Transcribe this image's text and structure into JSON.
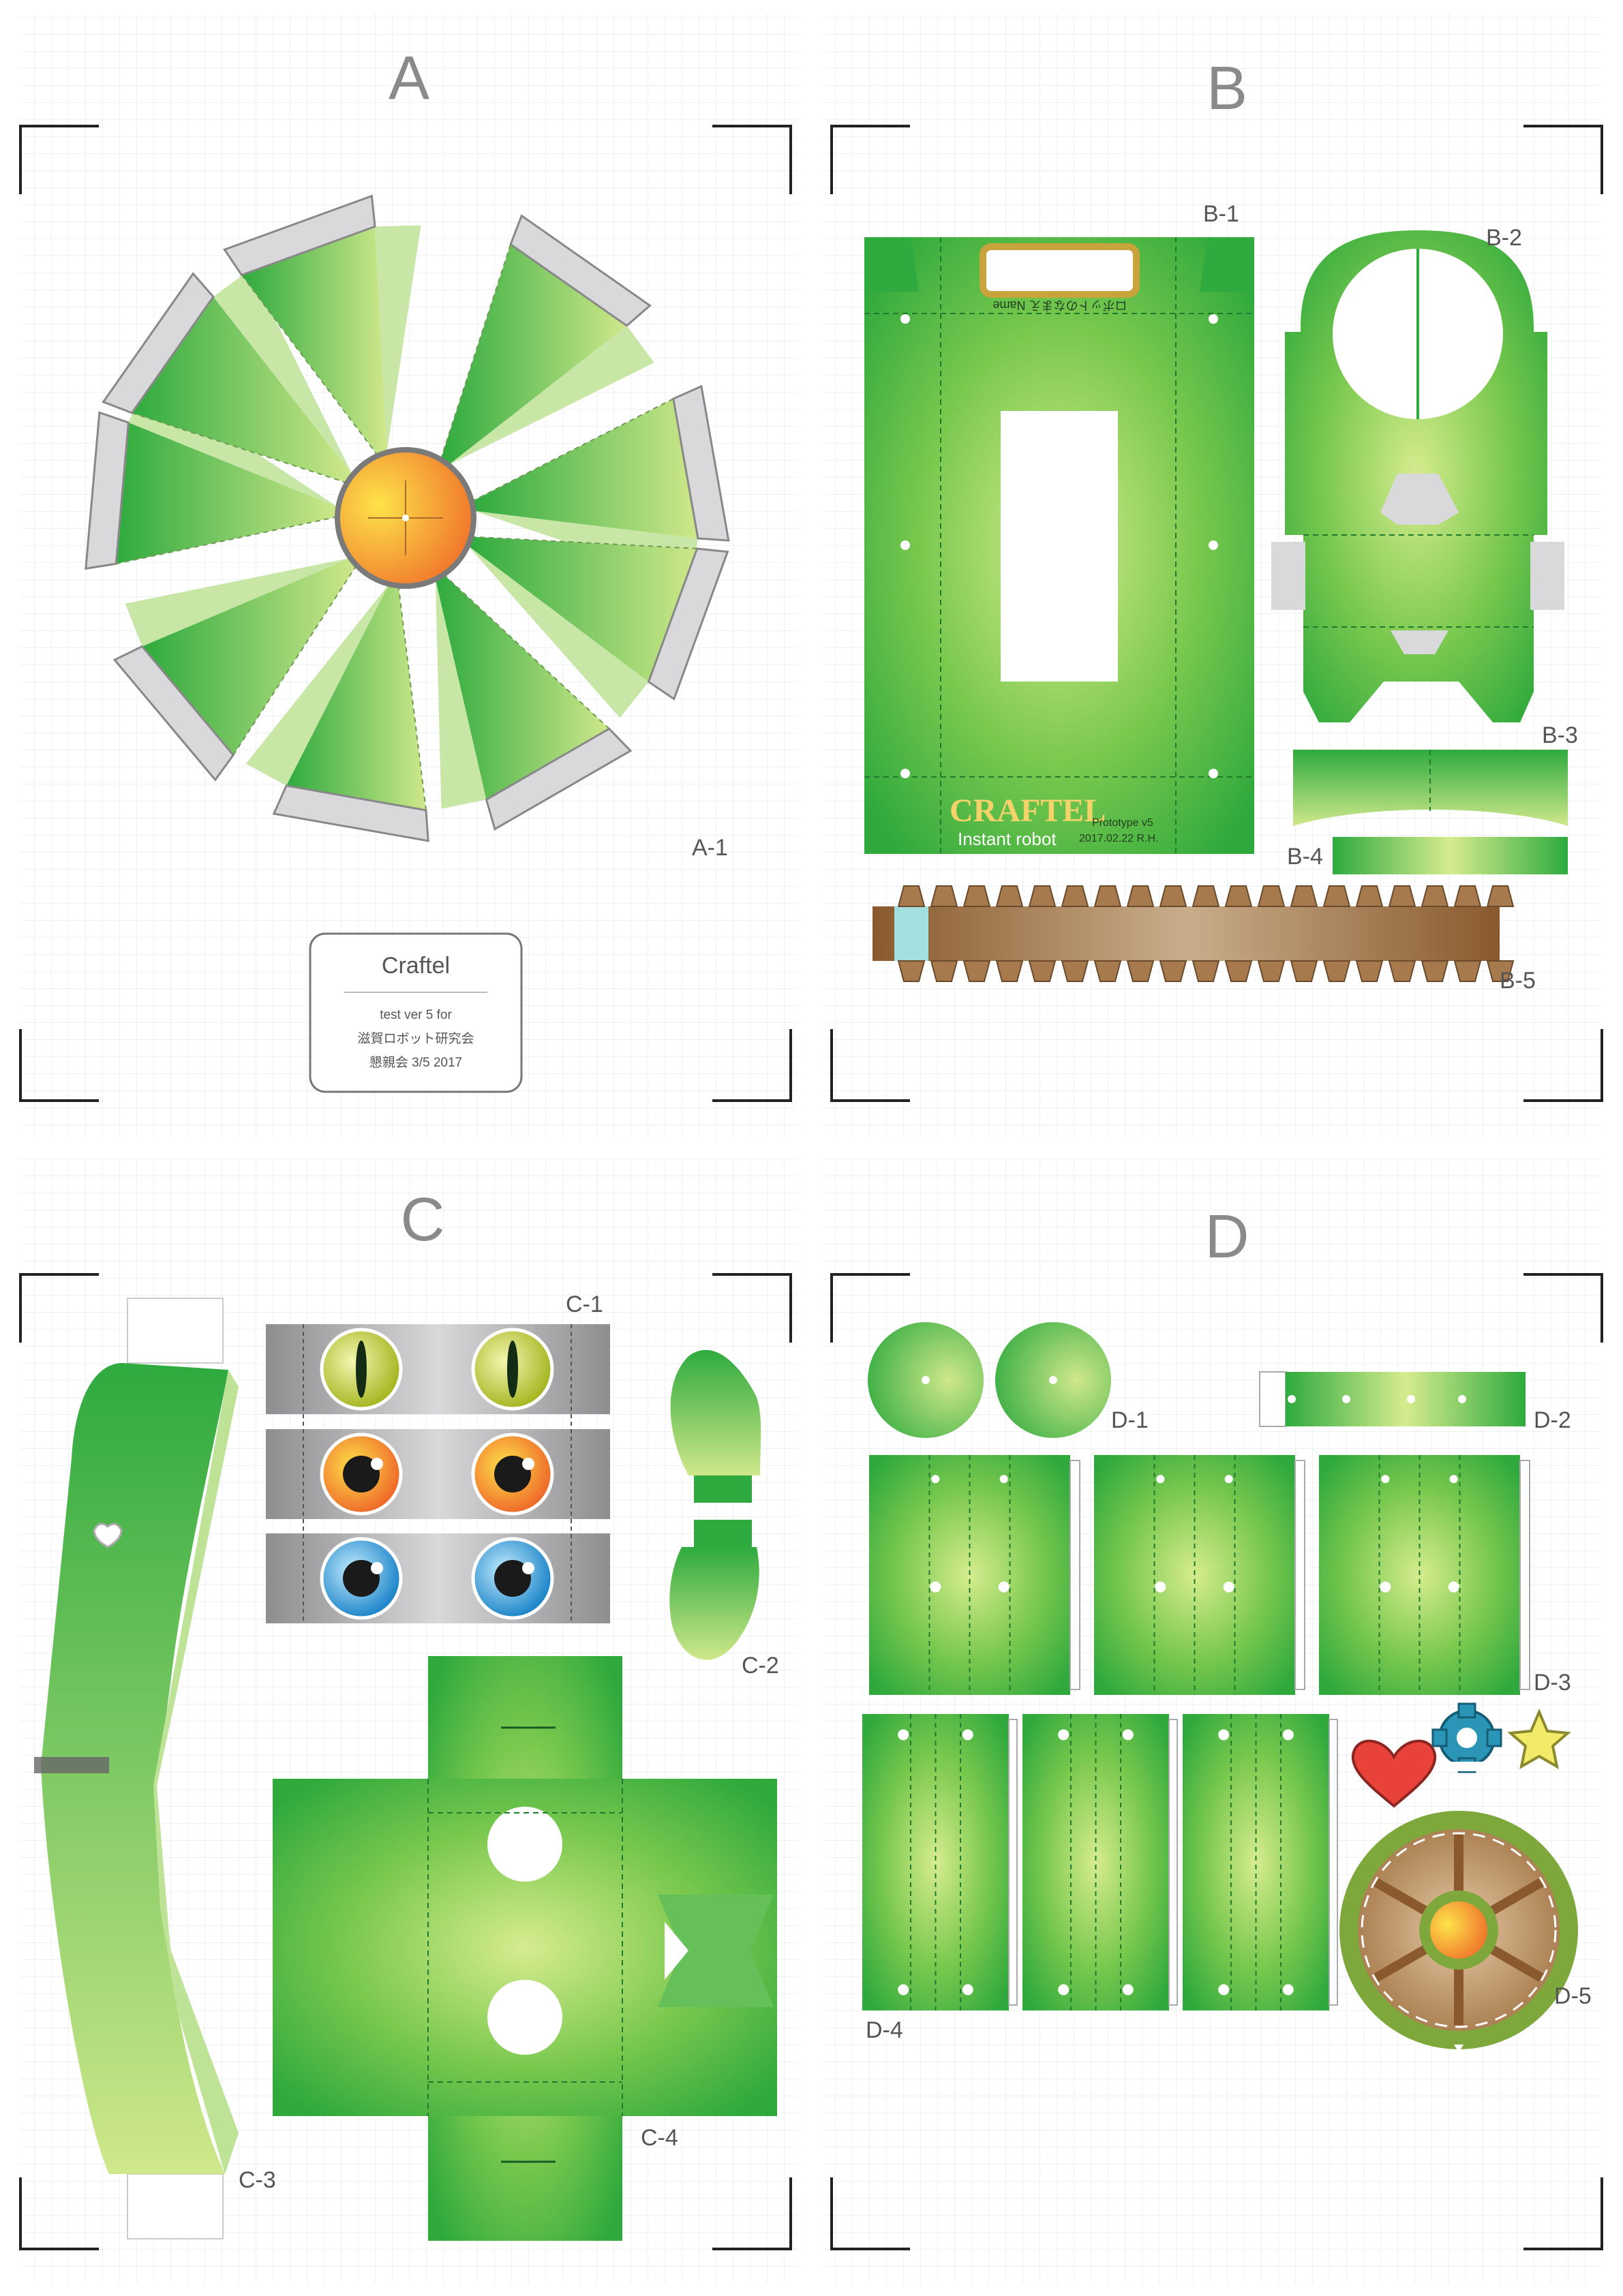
{
  "sheets": {
    "a": {
      "letter": "A"
    },
    "b": {
      "letter": "B"
    },
    "c": {
      "letter": "C"
    },
    "d": {
      "letter": "D"
    }
  },
  "parts": {
    "a1": "A-1",
    "b1": "B-1",
    "b2": "B-2",
    "b3": "B-3",
    "b4": "B-4",
    "b5": "B-5",
    "c1": "C-1",
    "c2": "C-2",
    "c3": "C-3",
    "c4": "C-4",
    "d1": "D-1",
    "d2": "D-2",
    "d3": "D-3",
    "d4": "D-4",
    "d5": "D-5"
  },
  "info_card": {
    "title": "Craftel",
    "line1": "test ver 5 for",
    "line2": "滋賀ロボット研究会",
    "line3": "懇親会 3/5 2017"
  },
  "robot_body": {
    "name_tab_text": "ロボットのなまえ Name",
    "brand": "CRAFTEL",
    "tagline": "Instant robot",
    "version": "Prototype v5",
    "date": "2017.02.22  R.H."
  },
  "colors": {
    "green_dark": "#2eaa3e",
    "green_light": "#cfe88a",
    "gray_tab": "#d9d9dc",
    "orange": "#f39a2b",
    "brown": "#9a6a3e"
  },
  "icons": [
    "heart-icon",
    "gear-icon",
    "star-icon"
  ]
}
